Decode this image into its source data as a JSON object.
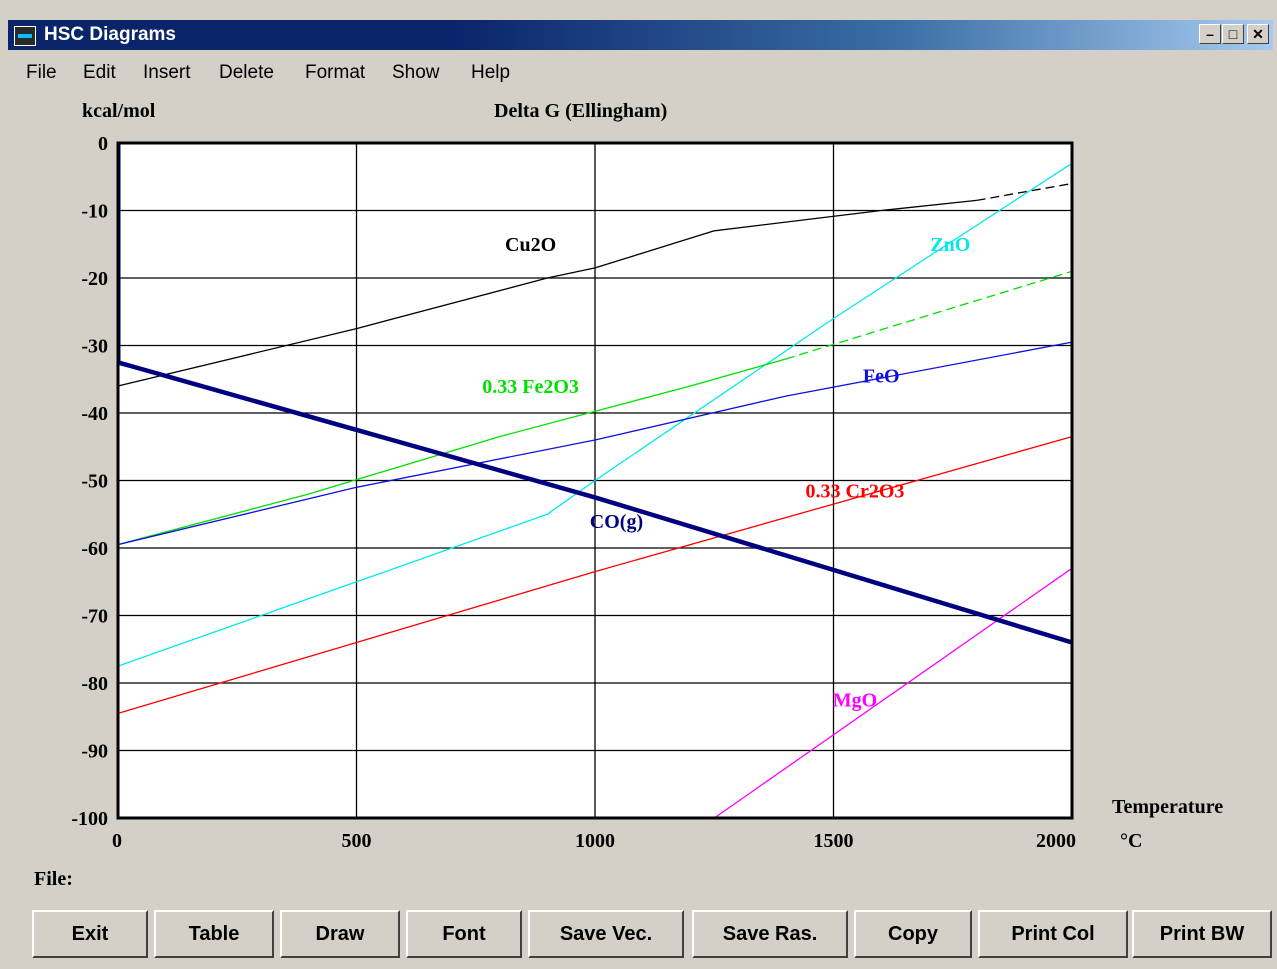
{
  "window": {
    "title": "HSC Diagrams"
  },
  "menu": [
    "File",
    "Edit",
    "Insert",
    "Delete",
    "Format",
    "Show",
    "Help"
  ],
  "chart_data": {
    "type": "line",
    "title": "Delta G (Ellingham)",
    "ylabel": "kcal/mol",
    "xlabel_line1": "Temperature",
    "xlabel_line2": "°C",
    "xlim": [
      0,
      2000
    ],
    "ylim": [
      -100,
      0
    ],
    "x_ticks": [
      "0",
      "500",
      "1000",
      "1500",
      "2000"
    ],
    "y_ticks": [
      "0",
      "-10",
      "-20",
      "-30",
      "-40",
      "-50",
      "-60",
      "-70",
      "-80",
      "-90",
      "-100"
    ],
    "grid": true,
    "series": [
      {
        "name": "Cu2O",
        "color": "#000000",
        "width": 1.3,
        "points": [
          [
            0,
            -36
          ],
          [
            500,
            -27.5
          ],
          [
            900,
            -20
          ],
          [
            1000,
            -18.5
          ],
          [
            1250,
            -13
          ],
          [
            1600,
            -10
          ],
          [
            1800,
            -8.5
          ]
        ],
        "dashed_points": [
          [
            1800,
            -8.5
          ],
          [
            2000,
            -6
          ]
        ],
        "label_at": [
          865,
          -16
        ],
        "label_color": "#000000"
      },
      {
        "name": "ZnO",
        "color": "#00e8f0",
        "width": 1.3,
        "points": [
          [
            0,
            -77.5
          ],
          [
            500,
            -65
          ],
          [
            900,
            -55
          ],
          [
            1000,
            -50
          ],
          [
            1500,
            -26
          ],
          [
            2000,
            -3
          ]
        ],
        "label_at": [
          1745,
          -16
        ],
        "label_color": "#00e8f0"
      },
      {
        "name": "0.33  Fe2O3",
        "color": "#00e000",
        "width": 1.3,
        "points": [
          [
            0,
            -59.5
          ],
          [
            400,
            -52
          ],
          [
            800,
            -43.5
          ],
          [
            1200,
            -36
          ],
          [
            1400,
            -32
          ]
        ],
        "dashed_points": [
          [
            1400,
            -32
          ],
          [
            2000,
            -19
          ]
        ],
        "label_at": [
          865,
          -37
        ],
        "label_color": "#00e000"
      },
      {
        "name": "FeO",
        "color": "#1010e0",
        "width": 1.3,
        "points": [
          [
            0,
            -59.5
          ],
          [
            500,
            -51
          ],
          [
            1000,
            -44
          ],
          [
            1400,
            -37.5
          ],
          [
            2000,
            -29.5
          ]
        ],
        "label_at": [
          1600,
          -35.5
        ],
        "label_color": "#1010e0"
      },
      {
        "name": "0.33  Cr2O3",
        "color": "#ff0000",
        "width": 1.3,
        "points": [
          [
            0,
            -84.5
          ],
          [
            500,
            -74
          ],
          [
            1000,
            -63.5
          ],
          [
            1500,
            -53.5
          ],
          [
            2000,
            -43.5
          ]
        ],
        "label_at": [
          1545,
          -52.5
        ],
        "label_color": "#ff0000"
      },
      {
        "name": "MgO",
        "color": "#ff00ff",
        "width": 1.3,
        "points": [
          [
            1250,
            -100
          ],
          [
            2000,
            -63
          ]
        ],
        "label_at": [
          1545,
          -83.5
        ],
        "label_color": "#ff00ff"
      },
      {
        "name": "CO(g)",
        "color": "#000080",
        "width": 4.5,
        "points": [
          [
            0,
            -32.5
          ],
          [
            1000,
            -52.5
          ],
          [
            2000,
            -74
          ]
        ],
        "label_at": [
          1045,
          -57
        ],
        "label_color": "#000080"
      }
    ]
  },
  "status": {
    "file_label": "File:"
  },
  "buttons": [
    "Exit",
    "Table",
    "Draw",
    "Font",
    "Save Vec.",
    "Save Ras.",
    "Copy",
    "Print Col",
    "Print BW"
  ]
}
